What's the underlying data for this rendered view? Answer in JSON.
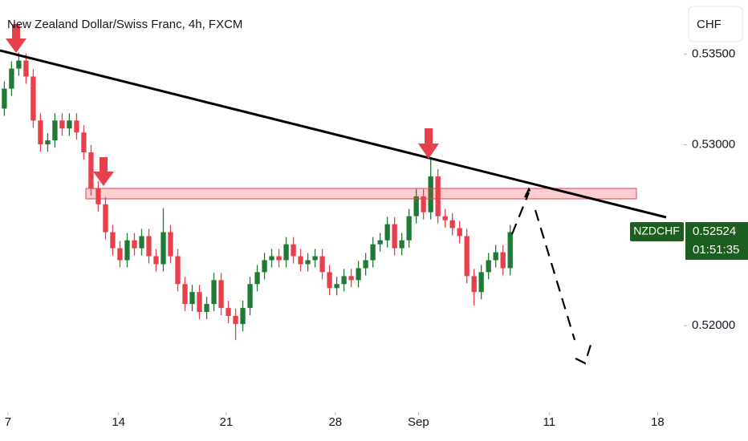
{
  "chart_data": {
    "type": "candlestick",
    "title": "New Zealand Dollar/Swiss Franc, 4h, FXCM",
    "currency": "CHF",
    "symbol": "NZDCHF",
    "last_price": 0.52524,
    "countdown": "01:51:35",
    "up_color": "#1e7a34",
    "down_color": "#e5404b",
    "grid": false,
    "xlim": [
      -0.6,
      93.8
    ],
    "xticks": [
      {
        "value": 0.5,
        "label": "7"
      },
      {
        "value": 15.8,
        "label": "14"
      },
      {
        "value": 30.7,
        "label": "21"
      },
      {
        "value": 45.8,
        "label": "28"
      },
      {
        "value": 57.3,
        "label": "Sep"
      },
      {
        "value": 75.4,
        "label": "11"
      },
      {
        "value": 90.4,
        "label": "18"
      }
    ],
    "ylim": [
      0.5154,
      0.538
    ],
    "yticks": [
      {
        "value": 0.52,
        "label": "0.52000"
      },
      {
        "value": 0.53,
        "label": "0.53000"
      },
      {
        "value": 0.535,
        "label": "0.53500"
      }
    ],
    "open": [
      0.532,
      0.5331,
      0.53421,
      0.53465,
      0.53377,
      0.53134,
      0.53002,
      0.53024,
      0.53134,
      0.5309,
      0.53134,
      0.53068,
      0.52958,
      0.52759,
      0.52671,
      0.52517,
      0.52428,
      0.52362,
      0.52472,
      0.52428,
      0.52495,
      0.52384,
      0.5234,
      0.52517,
      0.52384,
      0.5223,
      0.5212,
      0.52186,
      0.52076,
      0.5212,
      0.52252,
      0.52098,
      0.52054,
      0.52009,
      0.52098,
      0.5223,
      0.52296,
      0.52362,
      0.52384,
      0.52362,
      0.5245,
      0.52384,
      0.5234,
      0.52362,
      0.52384,
      0.52296,
      0.52208,
      0.5223,
      0.52274,
      0.52252,
      0.52318,
      0.52362,
      0.5245,
      0.52472,
      0.52561,
      0.52428,
      0.52472,
      0.52605,
      0.52715,
      0.52627,
      0.52825,
      0.52605,
      0.52583,
      0.52539,
      0.52495,
      0.52274,
      0.52186,
      0.52296,
      0.52362,
      0.52406,
      0.52318
    ],
    "high": [
      0.5335,
      0.53461,
      0.5351,
      0.53505,
      0.53417,
      0.53174,
      0.53064,
      0.53174,
      0.53174,
      0.53174,
      0.53174,
      0.53108,
      0.52998,
      0.52799,
      0.52711,
      0.52557,
      0.52468,
      0.52512,
      0.52512,
      0.52535,
      0.52535,
      0.52424,
      0.5265,
      0.52557,
      0.52424,
      0.5227,
      0.52226,
      0.52226,
      0.5216,
      0.52292,
      0.52292,
      0.52138,
      0.52094,
      0.52138,
      0.5227,
      0.52336,
      0.52402,
      0.52424,
      0.52424,
      0.5249,
      0.5249,
      0.52424,
      0.52402,
      0.52424,
      0.52424,
      0.52336,
      0.5227,
      0.52314,
      0.52314,
      0.52358,
      0.52402,
      0.5249,
      0.52512,
      0.52601,
      0.52601,
      0.52512,
      0.52645,
      0.52755,
      0.52755,
      0.5292,
      0.52865,
      0.52645,
      0.52623,
      0.52579,
      0.52535,
      0.52314,
      0.52336,
      0.52402,
      0.52446,
      0.52446,
      0.52557
    ],
    "low": [
      0.5316,
      0.5327,
      0.53381,
      0.53337,
      0.53094,
      0.52962,
      0.52962,
      0.52984,
      0.5305,
      0.5305,
      0.53028,
      0.52918,
      0.52719,
      0.52631,
      0.52477,
      0.52388,
      0.52322,
      0.52322,
      0.52388,
      0.52388,
      0.52344,
      0.523,
      0.523,
      0.52344,
      0.5219,
      0.5208,
      0.5208,
      0.52036,
      0.52036,
      0.5208,
      0.52058,
      0.52014,
      0.5192,
      0.51969,
      0.52058,
      0.5219,
      0.52256,
      0.52322,
      0.52322,
      0.52322,
      0.52344,
      0.523,
      0.523,
      0.52322,
      0.52256,
      0.52168,
      0.52168,
      0.5219,
      0.52212,
      0.52212,
      0.52278,
      0.52322,
      0.5241,
      0.52432,
      0.52388,
      0.52388,
      0.52432,
      0.52565,
      0.52587,
      0.52587,
      0.52565,
      0.52543,
      0.52499,
      0.52455,
      0.52234,
      0.5211,
      0.52146,
      0.52256,
      0.52322,
      0.52278,
      0.52278
    ],
    "close": [
      0.5331,
      0.53421,
      0.53465,
      0.53377,
      0.53134,
      0.53002,
      0.53024,
      0.53134,
      0.5309,
      0.53134,
      0.53068,
      0.52958,
      0.52759,
      0.52671,
      0.52517,
      0.52428,
      0.52362,
      0.52472,
      0.52428,
      0.52495,
      0.52384,
      0.5234,
      0.52517,
      0.52384,
      0.5223,
      0.5212,
      0.52186,
      0.52076,
      0.5212,
      0.52252,
      0.52098,
      0.52054,
      0.52009,
      0.52098,
      0.5223,
      0.52296,
      0.52362,
      0.52384,
      0.52362,
      0.5245,
      0.52384,
      0.5234,
      0.52362,
      0.52384,
      0.52296,
      0.52208,
      0.5223,
      0.52274,
      0.52252,
      0.52318,
      0.52362,
      0.5245,
      0.52472,
      0.52561,
      0.52428,
      0.52472,
      0.52605,
      0.52715,
      0.52627,
      0.52825,
      0.52605,
      0.52583,
      0.52539,
      0.52495,
      0.52274,
      0.52186,
      0.52296,
      0.52362,
      0.52406,
      0.52318,
      0.52517
    ]
  }
}
